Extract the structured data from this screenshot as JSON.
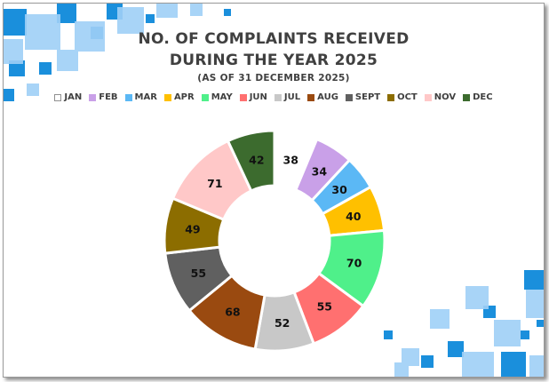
{
  "chart_data": {
    "type": "pie",
    "variant": "donut",
    "title_line1": "NO. OF COMPLAINTS RECEIVED",
    "title_line2": "DURING THE YEAR 2025",
    "subtitle": "(AS OF 31 DECEMBER 2025)",
    "legend_position": "top",
    "categories": [
      "JAN",
      "FEB",
      "MAR",
      "APR",
      "MAY",
      "JUN",
      "JUL",
      "AUG",
      "SEPT",
      "OCT",
      "NOV",
      "DEC"
    ],
    "values": [
      38,
      34,
      30,
      40,
      70,
      55,
      52,
      68,
      55,
      49,
      71,
      42
    ],
    "colors": [
      "#ffffff",
      "#c9a0e8",
      "#5bb8f5",
      "#ffc000",
      "#4ff08a",
      "#ff7070",
      "#c8c8c8",
      "#9a4a10",
      "#606060",
      "#8c6d00",
      "#ffc8c8",
      "#3c6b2e"
    ]
  }
}
